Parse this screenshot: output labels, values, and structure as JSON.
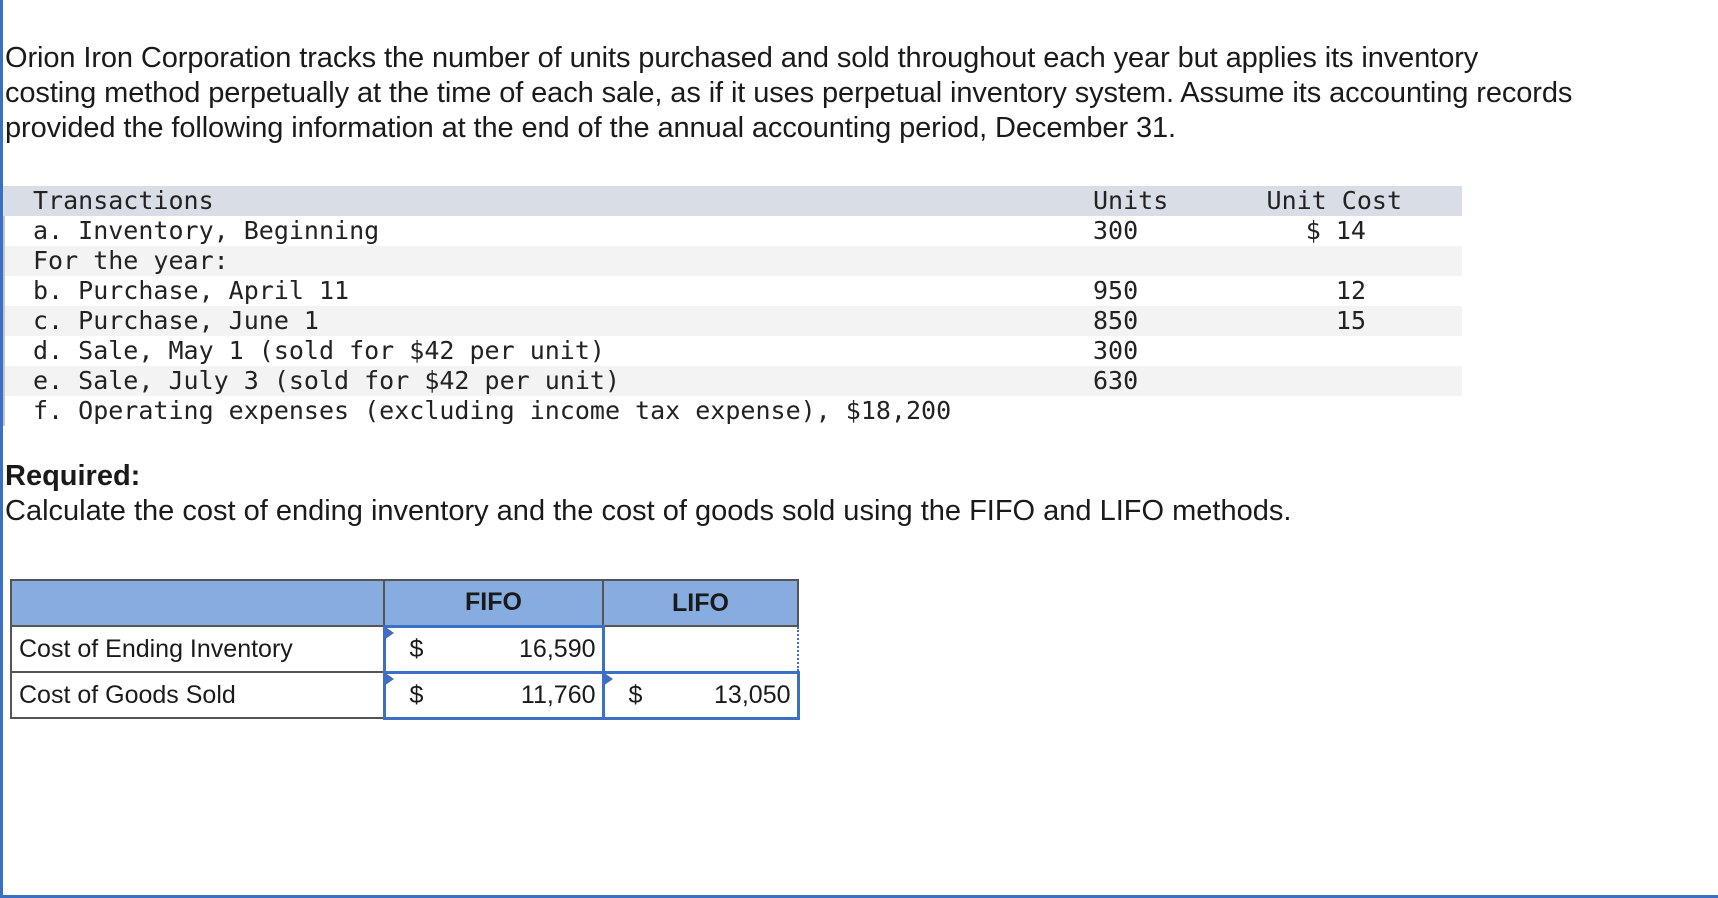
{
  "intro": {
    "line1": "Orion Iron Corporation tracks the number of units purchased and sold throughout each year but applies its inventory",
    "line2": "costing method perpetually at the time of each sale, as if it uses perpetual inventory system. Assume its accounting records",
    "line3": "provided the following information at the end of the annual accounting period, December 31."
  },
  "transactions": {
    "header": {
      "desc": "Transactions",
      "units": "Units",
      "unit_cost": "Unit Cost"
    },
    "rows": [
      {
        "desc": "a. Inventory, Beginning",
        "units": "300",
        "unit_cost": "$ 14"
      },
      {
        "desc": "For the year:",
        "units": "",
        "unit_cost": ""
      },
      {
        "desc": "b. Purchase, April 11",
        "units": "950",
        "unit_cost": "12"
      },
      {
        "desc": "c. Purchase, June 1",
        "units": "850",
        "unit_cost": "15"
      },
      {
        "desc": "d. Sale, May 1 (sold for $42 per unit)",
        "units": "300",
        "unit_cost": ""
      },
      {
        "desc": "e. Sale, July 3 (sold for $42 per unit)",
        "units": "630",
        "unit_cost": ""
      },
      {
        "desc": "f. Operating expenses (excluding income tax expense), $18,200",
        "units": "",
        "unit_cost": ""
      }
    ]
  },
  "required": {
    "title": "Required:",
    "text": "Calculate the cost of ending inventory and the cost of goods sold using the FIFO and LIFO methods."
  },
  "answer_table": {
    "headers": {
      "label": "",
      "fifo": "FIFO",
      "lifo": "LIFO"
    },
    "rows": [
      {
        "label": "Cost of Ending Inventory",
        "fifo_currency": "$",
        "fifo_value": "16,590",
        "lifo_currency": "",
        "lifo_value": ""
      },
      {
        "label": "Cost of Goods Sold",
        "fifo_currency": "$",
        "fifo_value": "11,760",
        "lifo_currency": "$",
        "lifo_value": "13,050"
      }
    ]
  }
}
